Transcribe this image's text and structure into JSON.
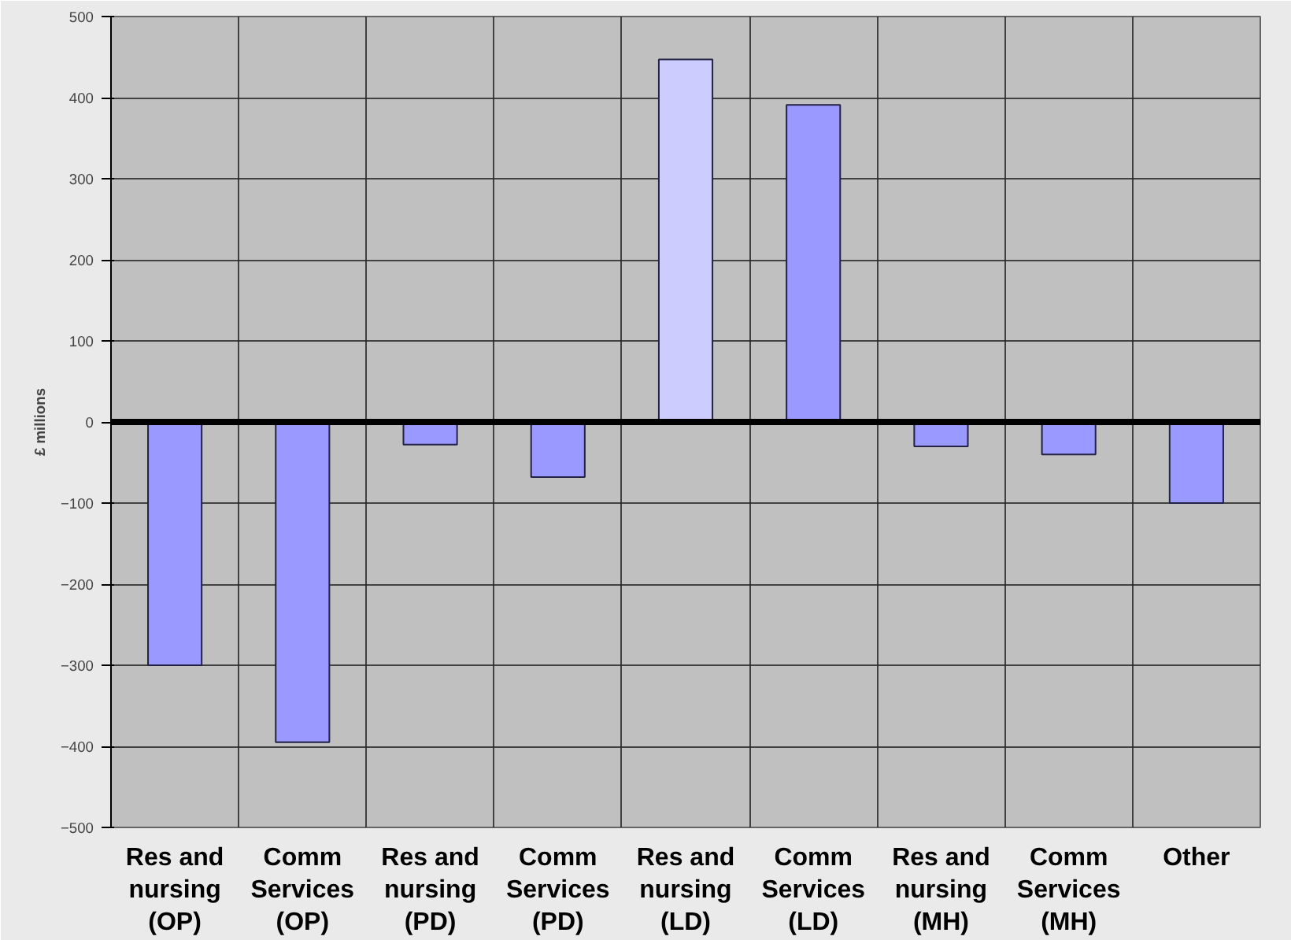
{
  "chart_data": {
    "type": "bar",
    "ylabel": "£ millions",
    "categories": [
      "Res and\nnursing\n(OP)",
      "Comm\nServices\n(OP)",
      "Res and\nnursing\n(PD)",
      "Comm\nServices\n(PD)",
      "Res and\nnursing\n(LD)",
      "Comm\nServices\n(LD)",
      "Res and\nnursing\n(MH)",
      "Comm\nServices\n(MH)",
      "Other"
    ],
    "values": [
      -300,
      -395,
      -28,
      -68,
      447,
      391,
      -30,
      -40,
      -100
    ],
    "colors": [
      "#9999ff",
      "#9999ff",
      "#9999ff",
      "#9999ff",
      "#ccccff",
      "#9999ff",
      "#9999ff",
      "#9999ff",
      "#9999ff"
    ],
    "ylim": [
      -500,
      500
    ],
    "yticks": [
      -500,
      -400,
      -300,
      -200,
      -100,
      0,
      100,
      200,
      300,
      400,
      500
    ],
    "grid": true,
    "ref_lines": [
      {
        "axis": "y",
        "value": 0,
        "color": "#000000"
      }
    ]
  }
}
